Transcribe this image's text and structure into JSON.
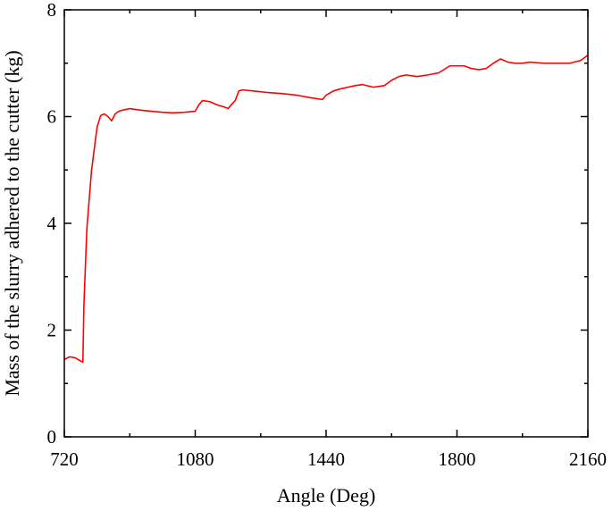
{
  "chart_data": {
    "type": "line",
    "title": "",
    "xlabel": "Angle (Deg)",
    "ylabel": "Mass of the slurry adhered to the cutter (kg)",
    "xlim": [
      720,
      2160
    ],
    "ylim": [
      0,
      8
    ],
    "x_ticks": [
      720,
      1080,
      1440,
      1800,
      2160
    ],
    "x_tick_labels": [
      "720",
      "1080",
      "1440",
      "1800",
      "2160"
    ],
    "y_ticks": [
      0,
      2,
      4,
      6,
      8
    ],
    "y_tick_labels": [
      "0",
      "2",
      "4",
      "6",
      "8"
    ],
    "grid": false,
    "legend": "none",
    "series": [
      {
        "color": "#ff0000",
        "x": [
          720,
          735,
          750,
          765,
          771,
          774,
          782,
          795,
          810,
          820,
          830,
          840,
          850,
          860,
          870,
          880,
          900,
          930,
          960,
          990,
          1020,
          1050,
          1080,
          1090,
          1100,
          1120,
          1140,
          1160,
          1170,
          1190,
          1200,
          1210,
          1240,
          1280,
          1320,
          1360,
          1400,
          1430,
          1440,
          1460,
          1480,
          1500,
          1520,
          1540,
          1570,
          1600,
          1620,
          1640,
          1660,
          1690,
          1720,
          1750,
          1780,
          1800,
          1820,
          1840,
          1860,
          1880,
          1900,
          1920,
          1940,
          1960,
          1980,
          2000,
          2040,
          2080,
          2110,
          2140,
          2160
        ],
        "y": [
          1.45,
          1.5,
          1.48,
          1.42,
          1.4,
          2.5,
          3.9,
          5.0,
          5.8,
          6.02,
          6.05,
          6.0,
          5.92,
          6.05,
          6.1,
          6.12,
          6.15,
          6.12,
          6.1,
          6.08,
          6.07,
          6.08,
          6.1,
          6.22,
          6.3,
          6.28,
          6.22,
          6.18,
          6.15,
          6.3,
          6.48,
          6.5,
          6.48,
          6.45,
          6.43,
          6.4,
          6.35,
          6.32,
          6.4,
          6.48,
          6.52,
          6.55,
          6.58,
          6.6,
          6.55,
          6.58,
          6.68,
          6.75,
          6.78,
          6.75,
          6.78,
          6.82,
          6.95,
          6.95,
          6.95,
          6.9,
          6.88,
          6.9,
          7.0,
          7.08,
          7.02,
          7.0,
          7.0,
          7.02,
          7.0,
          7.0,
          7.0,
          7.05,
          7.15
        ]
      }
    ]
  }
}
